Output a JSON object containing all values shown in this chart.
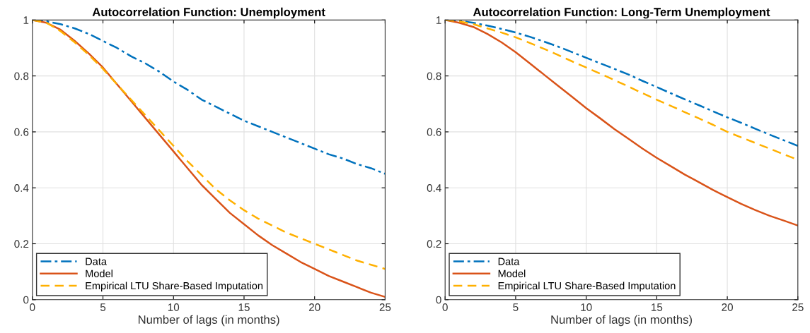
{
  "chart_data": [
    {
      "type": "line",
      "title": "Autocorrelation Function: Unemployment",
      "xlabel": "Number of lags (in months)",
      "x": [
        0,
        1,
        2,
        3,
        4,
        5,
        6,
        7,
        8,
        9,
        10,
        11,
        12,
        13,
        14,
        15,
        16,
        17,
        18,
        19,
        20,
        21,
        22,
        23,
        24,
        25
      ],
      "series": [
        {
          "name": "Data",
          "color": "#0072bd",
          "line_style": "dashdot",
          "values": [
            1,
            0.995,
            0.985,
            0.97,
            0.95,
            0.925,
            0.9,
            0.87,
            0.845,
            0.815,
            0.78,
            0.75,
            0.715,
            0.69,
            0.665,
            0.64,
            0.62,
            0.6,
            0.58,
            0.56,
            0.54,
            0.52,
            0.505,
            0.485,
            0.47,
            0.45
          ]
        },
        {
          "name": "Model",
          "color": "#d95319",
          "line_style": "solid",
          "values": [
            1,
            0.99,
            0.965,
            0.925,
            0.88,
            0.83,
            0.77,
            0.71,
            0.65,
            0.59,
            0.53,
            0.47,
            0.41,
            0.36,
            0.31,
            0.27,
            0.23,
            0.195,
            0.165,
            0.135,
            0.11,
            0.085,
            0.065,
            0.045,
            0.025,
            0.01
          ]
        },
        {
          "name": "Empirical LTU Share-Based Imputation",
          "color": "#ffb000",
          "line_style": "dashed",
          "values": [
            1,
            0.99,
            0.96,
            0.92,
            0.875,
            0.825,
            0.77,
            0.715,
            0.66,
            0.605,
            0.55,
            0.495,
            0.445,
            0.395,
            0.355,
            0.32,
            0.29,
            0.265,
            0.24,
            0.22,
            0.2,
            0.18,
            0.16,
            0.14,
            0.125,
            0.11
          ]
        }
      ],
      "xlim": [
        0,
        25
      ],
      "xticks": [
        0,
        5,
        10,
        15,
        20,
        25
      ],
      "ylim": [
        0,
        1
      ],
      "yticks": [
        0,
        0.2,
        0.4,
        0.6,
        0.8,
        1
      ],
      "grid": true,
      "legend": "bottom left"
    },
    {
      "type": "line",
      "title": "Autocorrelation Function: Long-Term Unemployment",
      "xlabel": "Number of lags (in months)",
      "x": [
        0,
        1,
        2,
        3,
        4,
        5,
        6,
        7,
        8,
        9,
        10,
        11,
        12,
        13,
        14,
        15,
        16,
        17,
        18,
        19,
        20,
        21,
        22,
        23,
        24,
        25
      ],
      "series": [
        {
          "name": "Data",
          "color": "#0072bd",
          "line_style": "dashdot",
          "values": [
            1,
            0.997,
            0.99,
            0.98,
            0.968,
            0.955,
            0.94,
            0.923,
            0.905,
            0.885,
            0.865,
            0.845,
            0.825,
            0.805,
            0.782,
            0.76,
            0.738,
            0.716,
            0.695,
            0.673,
            0.652,
            0.632,
            0.611,
            0.59,
            0.57,
            0.55
          ]
        },
        {
          "name": "Model",
          "color": "#d95319",
          "line_style": "solid",
          "values": [
            1,
            0.99,
            0.975,
            0.95,
            0.92,
            0.885,
            0.845,
            0.805,
            0.765,
            0.725,
            0.685,
            0.648,
            0.61,
            0.575,
            0.54,
            0.507,
            0.477,
            0.447,
            0.42,
            0.392,
            0.367,
            0.342,
            0.32,
            0.3,
            0.283,
            0.265
          ]
        },
        {
          "name": "Empirical LTU Share-Based Imputation",
          "color": "#ffb000",
          "line_style": "dashed",
          "values": [
            1,
            0.995,
            0.985,
            0.97,
            0.955,
            0.938,
            0.918,
            0.897,
            0.875,
            0.852,
            0.83,
            0.808,
            0.785,
            0.762,
            0.738,
            0.715,
            0.693,
            0.67,
            0.648,
            0.625,
            0.6,
            0.58,
            0.56,
            0.54,
            0.52,
            0.5
          ]
        }
      ],
      "xlim": [
        0,
        25
      ],
      "xticks": [
        0,
        5,
        10,
        15,
        20,
        25
      ],
      "ylim": [
        0,
        1
      ],
      "yticks": [
        0,
        0.2,
        0.4,
        0.6,
        0.8,
        1
      ],
      "grid": true,
      "legend": "bottom left"
    }
  ]
}
